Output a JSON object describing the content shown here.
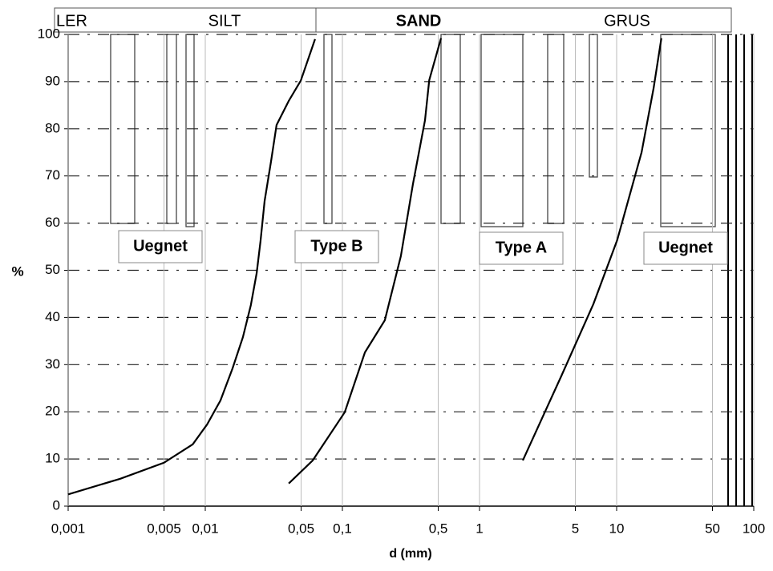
{
  "chart_data": {
    "type": "line",
    "zones": [
      "LER",
      "SILT",
      "SAND",
      "GRUS"
    ],
    "annotations": [
      "Uegnet",
      "Type B",
      "Type A",
      "Uegnet"
    ],
    "xlabel": "d (mm)",
    "ylabel": "%",
    "xscale": "log",
    "xlim": [
      0.001,
      100
    ],
    "ylim": [
      0,
      100
    ],
    "xticks": [
      {
        "value": 0.001,
        "label": "0,001"
      },
      {
        "value": 0.005,
        "label": "0,005"
      },
      {
        "value": 0.01,
        "label": "0,01"
      },
      {
        "value": 0.05,
        "label": "0,05"
      },
      {
        "value": 0.1,
        "label": "0,1"
      },
      {
        "value": 0.5,
        "label": "0,5"
      },
      1,
      5,
      10,
      50,
      100
    ],
    "yticks": [
      0,
      10,
      20,
      30,
      40,
      50,
      60,
      70,
      80,
      90,
      100
    ],
    "grid": true,
    "series": [
      {
        "color": "#000000",
        "x": [
          0.001,
          0.0024,
          0.005,
          0.0081,
          0.0103,
          0.0129,
          0.0158,
          0.0188,
          0.0215,
          0.0237,
          0.0253,
          0.0271,
          0.0302,
          0.0331,
          0.0406,
          0.0497,
          0.0632
        ],
        "values": [
          2.5,
          5.8,
          9.2,
          13.1,
          17.3,
          22.4,
          29.2,
          35.8,
          42.6,
          49.4,
          56.2,
          64.7,
          73.2,
          80.8,
          85.9,
          90.2,
          99
        ]
      },
      {
        "color": "#000000",
        "x": [
          0.0406,
          0.0608,
          0.104,
          0.146,
          0.204,
          0.267,
          0.327,
          0.4,
          0.43,
          0.524
        ],
        "values": [
          4.8,
          9.7,
          19.9,
          32.6,
          39.4,
          53,
          68.3,
          81.8,
          90.3,
          99.2
        ]
      },
      {
        "color": "#000000",
        "x": [
          2.07,
          3.94,
          6.76,
          10.1,
          15.2,
          18.6,
          21.2
        ],
        "values": [
          9.7,
          27.5,
          42.8,
          56.4,
          75,
          88.6,
          99.2
        ]
      }
    ]
  }
}
